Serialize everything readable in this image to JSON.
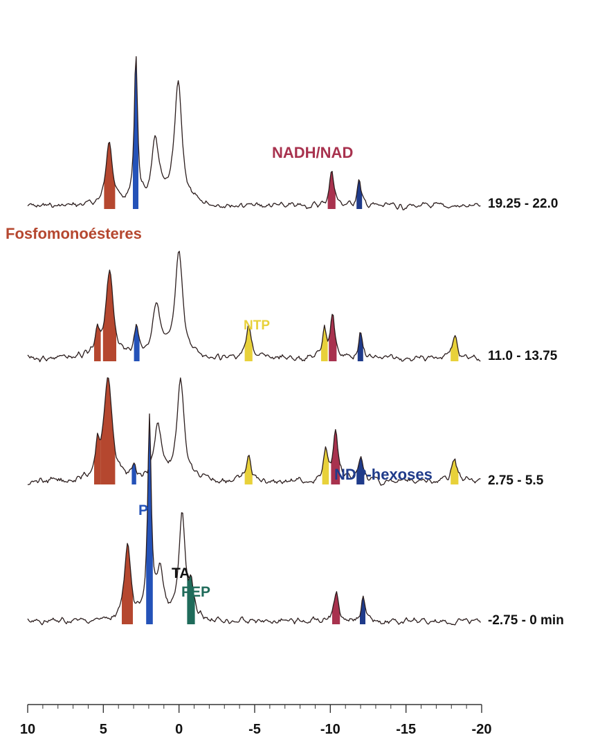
{
  "chart_data": {
    "type": "line",
    "title": "",
    "xlabel": "",
    "ylabel": "",
    "xlim": [
      10,
      -20
    ],
    "x_ticks": [
      "10",
      "5",
      "0",
      "-5",
      "-10",
      "-15",
      "-20"
    ],
    "x_tick_values": [
      10,
      5,
      0,
      -5,
      -10,
      -15,
      -20
    ],
    "grid": false,
    "colors": {
      "trace": "#2a1c1c",
      "Fosfomonoésteres": "#b5472f",
      "Pi": "#2452b8",
      "NADH/NAD": "#a8324e",
      "NDP-hexoses": "#1f3b8a",
      "NTP": "#e8d13a",
      "PEP": "#1f6b5a",
      "TA": "#111111"
    },
    "series": [
      {
        "name": "19.25 - 22.0",
        "baseline": 0,
        "peaks": [
          {
            "x": 4.6,
            "height": 95,
            "width": 0.25,
            "compound": "Fosfomonoésteres"
          },
          {
            "x": 2.85,
            "height": 215,
            "width": 0.13,
            "compound": "Pi"
          },
          {
            "x": 1.55,
            "height": 90,
            "width": 0.3,
            "compound": ""
          },
          {
            "x": 0.05,
            "height": 175,
            "width": 0.3,
            "compound": ""
          },
          {
            "x": -10.1,
            "height": 52,
            "width": 0.18,
            "compound": "NADH/NAD"
          },
          {
            "x": -11.9,
            "height": 38,
            "width": 0.15,
            "compound": "NDP-hexoses"
          }
        ]
      },
      {
        "name": "11.0 - 13.75",
        "baseline": 0,
        "peaks": [
          {
            "x": 5.4,
            "height": 30,
            "width": 0.15,
            "compound": "Fosfomonoésteres"
          },
          {
            "x": 4.6,
            "height": 125,
            "width": 0.3,
            "compound": "Fosfomonoésteres"
          },
          {
            "x": 2.8,
            "height": 45,
            "width": 0.15,
            "compound": "Pi"
          },
          {
            "x": 1.5,
            "height": 75,
            "width": 0.3,
            "compound": ""
          },
          {
            "x": 0.0,
            "height": 150,
            "width": 0.3,
            "compound": ""
          },
          {
            "x": -4.6,
            "height": 45,
            "width": 0.2,
            "compound": "NTP"
          },
          {
            "x": -9.6,
            "height": 42,
            "width": 0.15,
            "compound": "NTP"
          },
          {
            "x": -10.15,
            "height": 62,
            "width": 0.18,
            "compound": "NADH/NAD"
          },
          {
            "x": -12.0,
            "height": 34,
            "width": 0.15,
            "compound": "NDP-hexoses"
          },
          {
            "x": -18.2,
            "height": 34,
            "width": 0.2,
            "compound": "NTP"
          }
        ]
      },
      {
        "name": "2.75 - 5.5",
        "baseline": 0,
        "peaks": [
          {
            "x": 5.4,
            "height": 45,
            "width": 0.15,
            "compound": "Fosfomonoésteres"
          },
          {
            "x": 4.7,
            "height": 150,
            "width": 0.32,
            "compound": "Fosfomonoésteres"
          },
          {
            "x": 2.95,
            "height": 20,
            "width": 0.12,
            "compound": "Pi"
          },
          {
            "x": 1.4,
            "height": 80,
            "width": 0.3,
            "compound": ""
          },
          {
            "x": -0.1,
            "height": 145,
            "width": 0.28,
            "compound": ""
          },
          {
            "x": -4.6,
            "height": 35,
            "width": 0.2,
            "compound": "NTP"
          },
          {
            "x": -9.7,
            "height": 45,
            "width": 0.15,
            "compound": "NTP"
          },
          {
            "x": -10.35,
            "height": 70,
            "width": 0.2,
            "compound": "NADH/NAD"
          },
          {
            "x": -12.0,
            "height": 35,
            "width": 0.18,
            "compound": "NDP-hexoses"
          },
          {
            "x": -18.2,
            "height": 35,
            "width": 0.2,
            "compound": "NTP"
          }
        ]
      },
      {
        "name": "-2.75 - 0  min",
        "baseline": 0,
        "peaks": [
          {
            "x": 3.4,
            "height": 105,
            "width": 0.25,
            "compound": "Fosfomonoésteres"
          },
          {
            "x": 1.95,
            "height": 290,
            "width": 0.14,
            "compound": "Pi"
          },
          {
            "x": 1.25,
            "height": 70,
            "width": 0.25,
            "compound": ""
          },
          {
            "x": -0.2,
            "height": 150,
            "width": 0.25,
            "compound": "TA"
          },
          {
            "x": -0.8,
            "height": 40,
            "width": 0.18,
            "compound": "PEP"
          },
          {
            "x": -10.4,
            "height": 45,
            "width": 0.18,
            "compound": "NADH/NAD"
          },
          {
            "x": -12.15,
            "height": 35,
            "width": 0.15,
            "compound": "NDP-hexoses"
          }
        ]
      }
    ],
    "annotations": [
      {
        "text": "NADH/NAD",
        "compound": "NADH/NAD"
      },
      {
        "text": "Fosfomonoésteres",
        "compound": "Fosfomonoésteres"
      },
      {
        "text": "NTP",
        "compound": "NTP"
      },
      {
        "text": "NDP-hexoses",
        "compound": "NDP-hexoses"
      },
      {
        "text": "Pi",
        "compound": "Pi"
      },
      {
        "text": "TA",
        "compound": "TA"
      },
      {
        "text": "PEP",
        "compound": "PEP"
      }
    ]
  }
}
